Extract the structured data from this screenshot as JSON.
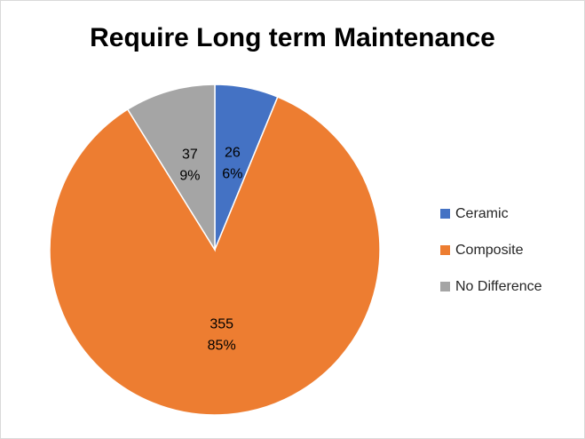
{
  "chart_data": {
    "type": "pie",
    "title": "Require Long term Maintenance",
    "categories": [
      "Ceramic",
      "Composite",
      "No Difference"
    ],
    "values": [
      26,
      355,
      37
    ],
    "percent_labels": [
      "6%",
      "85%",
      "9%"
    ],
    "colors": [
      "#4472c4",
      "#ed7d31",
      "#a5a5a5"
    ],
    "legend_position": "right",
    "start_angle_deg": 0,
    "direction": "clockwise"
  }
}
